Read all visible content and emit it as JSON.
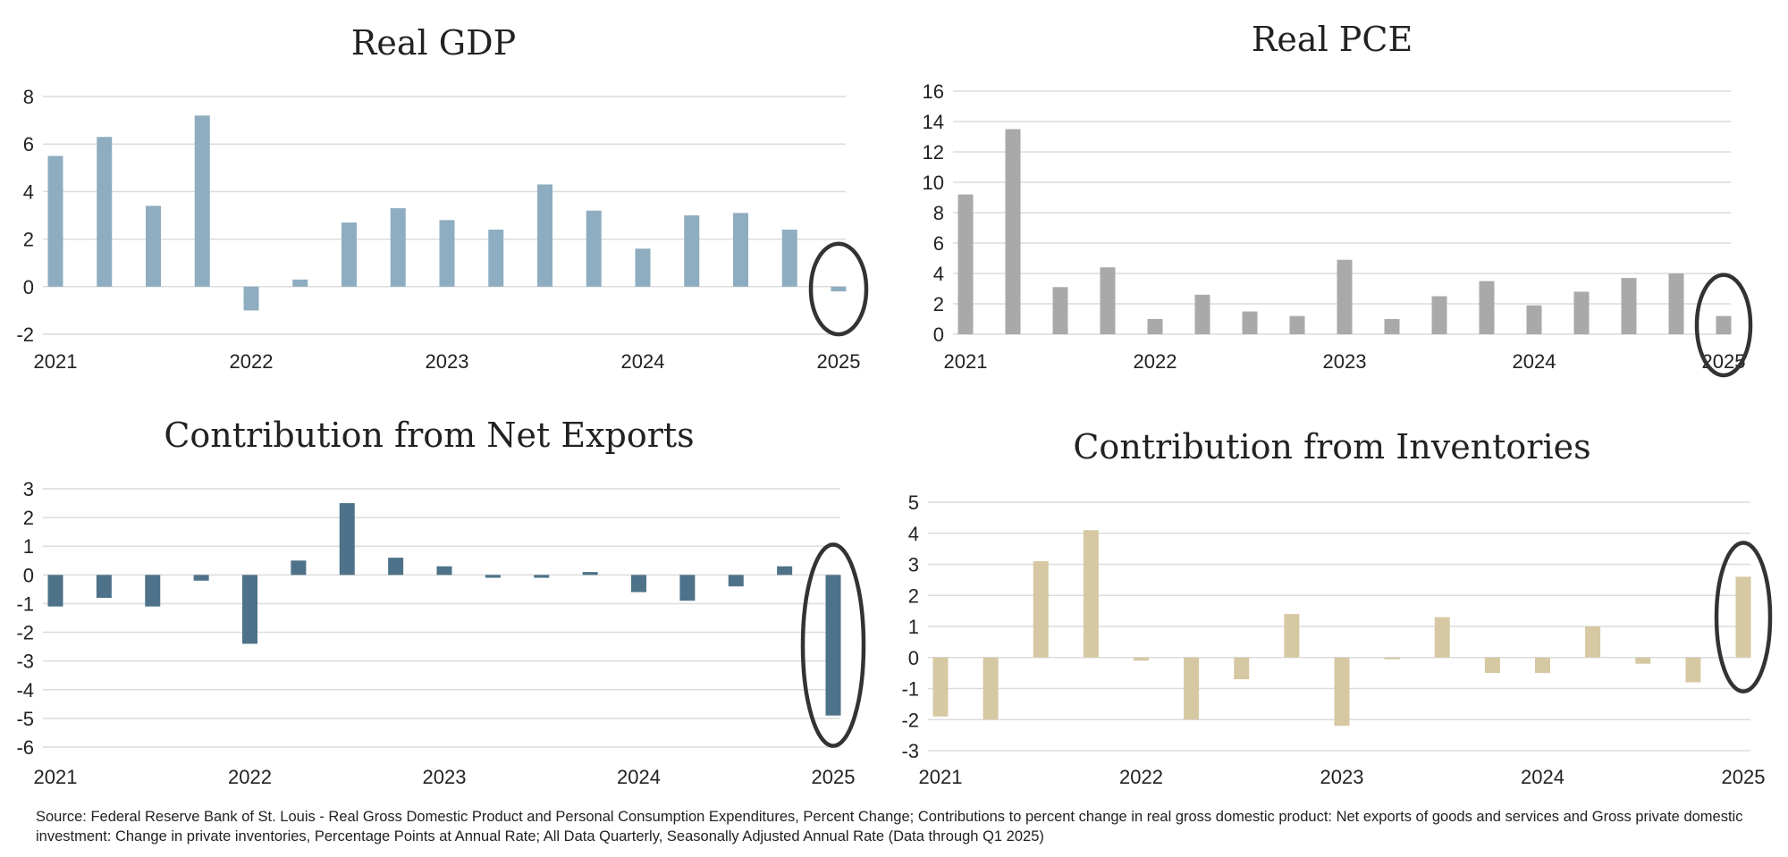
{
  "chart_data": [
    {
      "type": "bar",
      "title": "Real GDP",
      "color": "#8eadc0",
      "x_tick_labels": [
        "2021",
        "2022",
        "2023",
        "2024",
        "2025"
      ],
      "y_tick_labels": [
        "-2",
        "0",
        "2",
        "4",
        "6",
        "8"
      ],
      "ylim": [
        -2,
        8
      ],
      "grid": true,
      "categories": [
        "2021 Q1",
        "2021 Q2",
        "2021 Q3",
        "2021 Q4",
        "2022 Q1",
        "2022 Q2",
        "2022 Q3",
        "2022 Q4",
        "2023 Q1",
        "2023 Q2",
        "2023 Q3",
        "2023 Q4",
        "2024 Q1",
        "2024 Q2",
        "2024 Q3",
        "2024 Q4",
        "2025 Q1"
      ],
      "values": [
        5.5,
        6.3,
        3.4,
        7.2,
        -1.0,
        0.3,
        2.7,
        3.3,
        2.8,
        2.4,
        4.3,
        3.2,
        1.6,
        3.0,
        3.1,
        2.4,
        -0.2
      ],
      "highlight": "2025 Q1"
    },
    {
      "type": "bar",
      "title": "Real PCE",
      "color": "#a9a9a9",
      "x_tick_labels": [
        "2021",
        "2022",
        "2023",
        "2024",
        "2025"
      ],
      "y_tick_labels": [
        "0",
        "2",
        "4",
        "6",
        "8",
        "10",
        "12",
        "14",
        "16"
      ],
      "ylim": [
        0,
        16
      ],
      "grid": true,
      "categories": [
        "2021 Q1",
        "2021 Q2",
        "2021 Q3",
        "2021 Q4",
        "2022 Q1",
        "2022 Q2",
        "2022 Q3",
        "2022 Q4",
        "2023 Q1",
        "2023 Q2",
        "2023 Q3",
        "2023 Q4",
        "2024 Q1",
        "2024 Q2",
        "2024 Q3",
        "2024 Q4",
        "2025 Q1"
      ],
      "values": [
        9.2,
        13.5,
        3.1,
        4.4,
        1.0,
        2.6,
        1.5,
        1.2,
        4.9,
        1.0,
        2.5,
        3.5,
        1.9,
        2.8,
        3.7,
        4.0,
        1.2
      ],
      "highlight": "2025 Q1"
    },
    {
      "type": "bar",
      "title": "Contribution from Net Exports",
      "color": "#4e7289",
      "x_tick_labels": [
        "2021",
        "2022",
        "2023",
        "2024",
        "2025"
      ],
      "y_tick_labels": [
        "-6",
        "-5",
        "-4",
        "-3",
        "-2",
        "-1",
        "0",
        "1",
        "2",
        "3"
      ],
      "ylim": [
        -6,
        3
      ],
      "grid": true,
      "categories": [
        "2021 Q1",
        "2021 Q2",
        "2021 Q3",
        "2021 Q4",
        "2022 Q1",
        "2022 Q2",
        "2022 Q3",
        "2022 Q4",
        "2023 Q1",
        "2023 Q2",
        "2023 Q3",
        "2023 Q4",
        "2024 Q1",
        "2024 Q2",
        "2024 Q3",
        "2024 Q4",
        "2025 Q1"
      ],
      "values": [
        -1.1,
        -0.8,
        -1.1,
        -0.2,
        -2.4,
        0.5,
        2.5,
        0.6,
        0.3,
        -0.1,
        -0.1,
        0.1,
        -0.6,
        -0.9,
        -0.4,
        0.3,
        -4.9
      ],
      "highlight": "2025 Q1"
    },
    {
      "type": "bar",
      "title": "Contribution from Inventories",
      "color": "#d6c8a3",
      "x_tick_labels": [
        "2021",
        "2022",
        "2023",
        "2024",
        "2025"
      ],
      "y_tick_labels": [
        "-3",
        "-2",
        "-1",
        "0",
        "1",
        "2",
        "3",
        "4",
        "5"
      ],
      "ylim": [
        -3,
        5
      ],
      "grid": true,
      "categories": [
        "2021 Q1",
        "2021 Q2",
        "2021 Q3",
        "2021 Q4",
        "2022 Q1",
        "2022 Q2",
        "2022 Q3",
        "2022 Q4",
        "2023 Q1",
        "2023 Q2",
        "2023 Q3",
        "2023 Q4",
        "2024 Q1",
        "2024 Q2",
        "2024 Q3",
        "2024 Q4",
        "2025 Q1"
      ],
      "values": [
        -1.9,
        -2.0,
        3.1,
        4.1,
        -0.1,
        -2.0,
        -0.7,
        1.4,
        -2.2,
        0.0,
        1.3,
        -0.5,
        -0.5,
        1.0,
        -0.2,
        -0.8,
        2.6
      ],
      "highlight": "2025 Q1"
    }
  ],
  "source_note": "Source: Federal Reserve Bank of St. Louis - Real Gross Domestic Product and Personal Consumption Expenditures, Percent Change; Contributions to percent change in real gross domestic product: Net exports of goods and services and Gross private domestic investment: Change in private inventories, Percentage Points at Annual Rate; All Data Quarterly, Seasonally Adjusted Annual Rate (Data through Q1 2025)"
}
